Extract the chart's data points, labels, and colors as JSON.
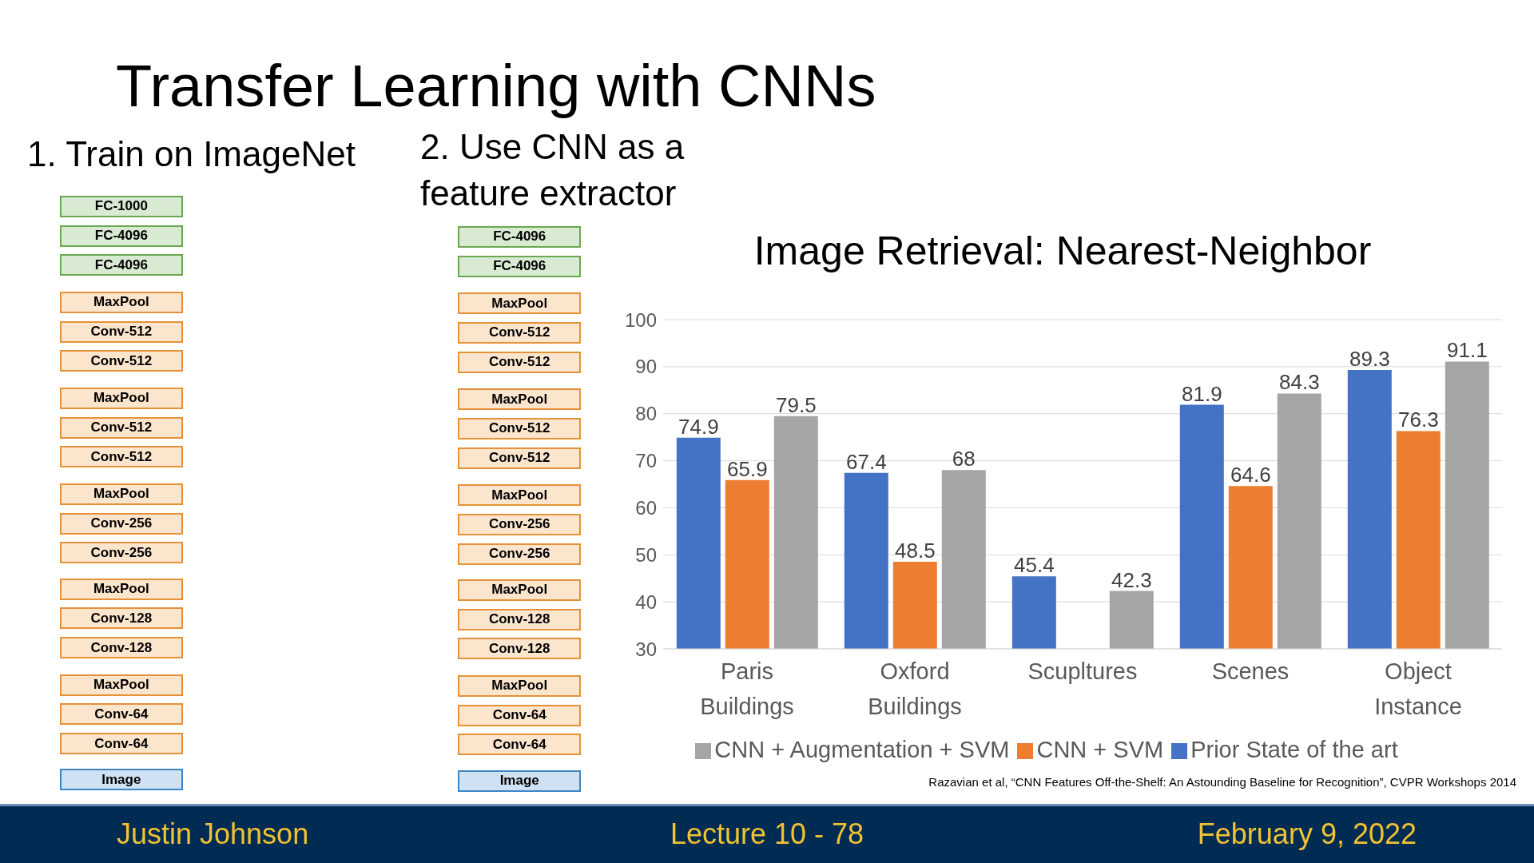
{
  "chart_data": {
    "type": "bar",
    "title": "Image Retrieval: Nearest-Neighbor",
    "categories": [
      "Paris Buildings",
      "Oxford Buildings",
      "Scupltures",
      "Scenes",
      "Object Instance"
    ],
    "series": [
      {
        "name": "Prior State of the art",
        "color": "#4472c4",
        "values": [
          74.9,
          67.4,
          45.4,
          81.9,
          89.3
        ]
      },
      {
        "name": "CNN + SVM",
        "color": "#ed7d31",
        "values": [
          65.9,
          48.5,
          null,
          64.6,
          76.3
        ]
      },
      {
        "name": "CNN + Augmentation + SVM",
        "color": "#a5a5a5",
        "values": [
          79.5,
          68,
          42.3,
          84.3,
          91.1
        ]
      }
    ],
    "ylim": [
      30,
      100
    ],
    "yticks": [
      30,
      40,
      50,
      60,
      70,
      80,
      90,
      100
    ],
    "grid": "y",
    "legend": "bottom",
    "data_labels": true,
    "annotations": [
      "Transfer Learning with CNNs",
      "1. Train on ImageNet",
      "2. Use CNN as a feature extractor",
      "FC-1000",
      "FC-4096",
      "FC-4096",
      "MaxPool",
      "Conv-512",
      "Conv-512",
      "MaxPool",
      "Conv-512",
      "Conv-512",
      "MaxPool",
      "Conv-256",
      "Conv-256",
      "MaxPool",
      "Conv-128",
      "Conv-128",
      "MaxPool",
      "Conv-64",
      "Conv-64",
      "Image",
      "FC-4096",
      "FC-4096",
      "MaxPool",
      "Conv-512",
      "Conv-512",
      "MaxPool",
      "Conv-512",
      "Conv-512",
      "MaxPool",
      "Conv-256",
      "Conv-256",
      "MaxPool",
      "Conv-128",
      "Conv-128",
      "MaxPool",
      "Conv-64",
      "Conv-64",
      "Image",
      "Razavian et al, “CNN Features Off-the-Shelf: An Astounding Baseline for Recognition”, CVPR Workshops 2014",
      "Justin Johnson",
      "Lecture 10 - 78",
      "February 9, 2022"
    ]
  }
}
